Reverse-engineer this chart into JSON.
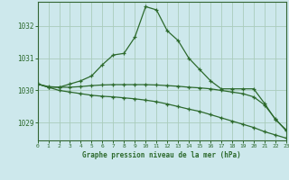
{
  "title": "Graphe pression niveau de la mer (hPa)",
  "bg_color": "#cde8ec",
  "grid_color": "#aaccbb",
  "line_color": "#2d6a2d",
  "spine_color": "#336633",
  "xlim": [
    0,
    23
  ],
  "ylim": [
    1028.45,
    1032.75
  ],
  "yticks": [
    1029,
    1030,
    1031,
    1032
  ],
  "xtick_labels": [
    "0",
    "1",
    "2",
    "3",
    "4",
    "5",
    "6",
    "7",
    "8",
    "9",
    "10",
    "11",
    "12",
    "13",
    "14",
    "15",
    "16",
    "17",
    "18",
    "19",
    "20",
    "21",
    "22",
    "23"
  ],
  "xticks": [
    0,
    1,
    2,
    3,
    4,
    5,
    6,
    7,
    8,
    9,
    10,
    11,
    12,
    13,
    14,
    15,
    16,
    17,
    18,
    19,
    20,
    21,
    22,
    23
  ],
  "series": [
    {
      "x": [
        0,
        1,
        2,
        3,
        4,
        5,
        6,
        7,
        8,
        9,
        10,
        11,
        12,
        13,
        14,
        15,
        16,
        17,
        18,
        19,
        20,
        21,
        22,
        23
      ],
      "y": [
        1030.2,
        1030.1,
        1030.1,
        1030.2,
        1030.3,
        1030.45,
        1030.8,
        1031.1,
        1031.15,
        1031.65,
        1032.6,
        1032.5,
        1031.85,
        1031.55,
        1031.0,
        1030.65,
        1030.3,
        1030.05,
        1030.05,
        1030.05,
        1030.05,
        1029.6,
        1029.1,
        1028.78
      ]
    },
    {
      "x": [
        0,
        1,
        2,
        3,
        4,
        5,
        6,
        7,
        8,
        9,
        10,
        11,
        12,
        13,
        14,
        15,
        16,
        17,
        18,
        19,
        20,
        21,
        22,
        23
      ],
      "y": [
        1030.2,
        1030.12,
        1030.1,
        1030.1,
        1030.12,
        1030.15,
        1030.17,
        1030.18,
        1030.18,
        1030.18,
        1030.18,
        1030.17,
        1030.15,
        1030.13,
        1030.1,
        1030.08,
        1030.05,
        1030.0,
        1029.95,
        1029.9,
        1029.8,
        1029.55,
        1029.12,
        1028.75
      ]
    },
    {
      "x": [
        0,
        1,
        2,
        3,
        4,
        5,
        6,
        7,
        8,
        9,
        10,
        11,
        12,
        13,
        14,
        15,
        16,
        17,
        18,
        19,
        20,
        21,
        22,
        23
      ],
      "y": [
        1030.2,
        1030.1,
        1030.0,
        1029.95,
        1029.9,
        1029.85,
        1029.82,
        1029.8,
        1029.77,
        1029.74,
        1029.7,
        1029.65,
        1029.58,
        1029.5,
        1029.42,
        1029.35,
        1029.25,
        1029.15,
        1029.05,
        1028.95,
        1028.85,
        1028.72,
        1028.62,
        1028.52
      ]
    }
  ]
}
